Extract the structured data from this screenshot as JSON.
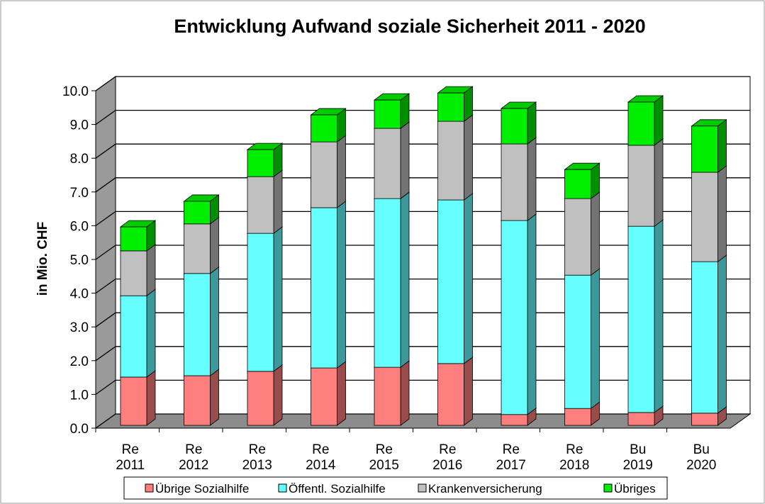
{
  "chart_data": {
    "type": "bar3d_stacked",
    "title": "Entwicklung Aufwand soziale Sicherheit 2011 - 2020",
    "y_label": "in Mio. CHF",
    "categories": [
      "Re 2011",
      "Re 2012",
      "Re 2013",
      "Re 2014",
      "Re 2015",
      "Re 2016",
      "Re 2017",
      "Re 2018",
      "Bu 2019",
      "Bu 2020"
    ],
    "series": [
      {
        "name": "Übrige Sozialhilfe",
        "color": "#ff7f7f",
        "values": [
          1.43,
          1.47,
          1.6,
          1.7,
          1.72,
          1.83,
          0.32,
          0.5,
          0.38,
          0.36
        ]
      },
      {
        "name": "Öffentl. Sozialhilfe",
        "color": "#66ffff",
        "values": [
          2.41,
          3.03,
          4.09,
          4.75,
          5.0,
          4.85,
          5.75,
          3.95,
          5.52,
          4.49
        ]
      },
      {
        "name": "Krankenversicherung",
        "color": "#c0c0c0",
        "values": [
          1.33,
          1.47,
          1.68,
          1.95,
          2.08,
          2.33,
          2.27,
          2.27,
          2.4,
          2.65
        ]
      },
      {
        "name": "Übriges",
        "color": "#00ee00",
        "values": [
          0.71,
          0.67,
          0.8,
          0.8,
          0.84,
          0.84,
          1.05,
          0.86,
          1.28,
          1.37
        ]
      }
    ],
    "ylim": [
      0,
      10
    ],
    "yticks": [
      {
        "value": 0,
        "label": "0.0"
      },
      {
        "value": 1,
        "label": "1.0"
      },
      {
        "value": 2,
        "label": "2.0"
      },
      {
        "value": 3,
        "label": "3.0"
      },
      {
        "value": 4,
        "label": "4.0"
      },
      {
        "value": 5,
        "label": "5.0"
      },
      {
        "value": 6,
        "label": "6.0"
      },
      {
        "value": 7,
        "label": "7.0"
      },
      {
        "value": 8,
        "label": "8.0"
      },
      {
        "value": 9,
        "label": "9.0"
      },
      {
        "value": 10,
        "label": "10.0"
      }
    ],
    "grid": true,
    "legend": "bottom",
    "stacked": true
  }
}
